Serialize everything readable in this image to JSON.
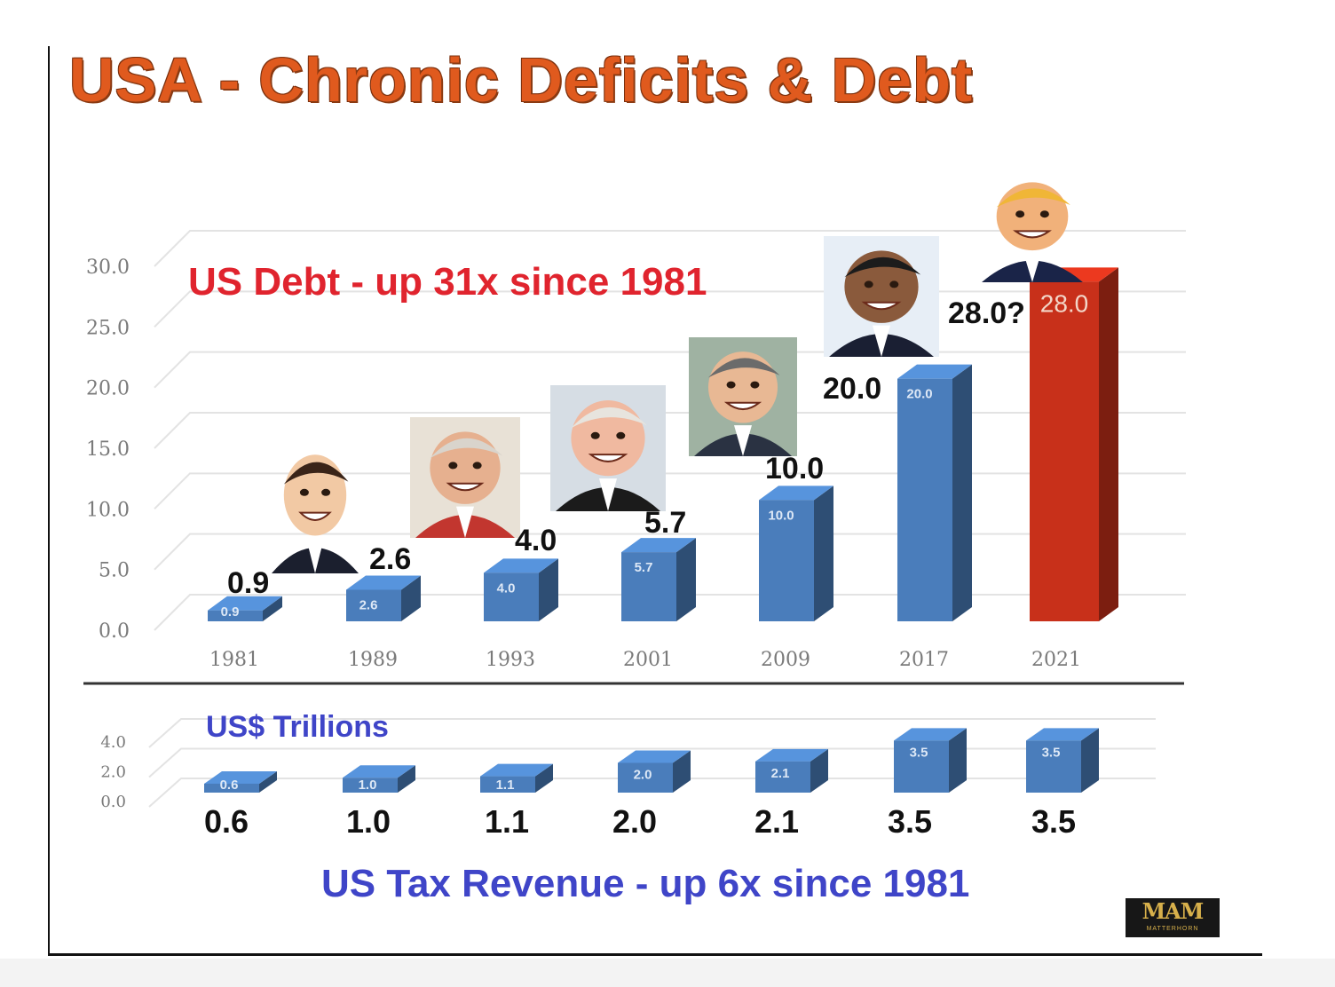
{
  "title": "USA - Chronic Deficits & Debt",
  "logo": {
    "mark": "MAM",
    "text": "MATTERHORN"
  },
  "chart_data": [
    {
      "type": "bar",
      "annotation": "US Debt  -  up 31x since 1981",
      "units_note": "US$ Trillions",
      "categories": [
        "1981",
        "1989",
        "1993",
        "2001",
        "2009",
        "2017",
        "2021"
      ],
      "values": [
        0.9,
        2.6,
        4.0,
        5.7,
        10.0,
        20.0,
        28.0
      ],
      "value_labels": [
        "0.9",
        "2.6",
        "4.0",
        "5.7",
        "10.0",
        "20.0",
        "28.0?"
      ],
      "inner_labels": [
        "0.9",
        "2.6",
        "4.0",
        "5.7",
        "10.0",
        "20.0",
        "28.0"
      ],
      "yticks": [
        "0.0",
        "5.0",
        "10.0",
        "15.0",
        "20.0",
        "25.0",
        "30.0"
      ],
      "ylim": [
        0,
        30
      ],
      "colors": [
        "#4a7dbb",
        "#4a7dbb",
        "#4a7dbb",
        "#4a7dbb",
        "#4a7dbb",
        "#4a7dbb",
        "#c8301a"
      ],
      "portraits": [
        "1981",
        "1989",
        "1993",
        "2001",
        "2017",
        "2021"
      ]
    },
    {
      "type": "bar",
      "annotation": "US Tax Revenue  - up 6x since 1981",
      "categories": [
        "1981",
        "1989",
        "1993",
        "2001",
        "2009",
        "2017",
        "2021"
      ],
      "values": [
        0.6,
        1.0,
        1.1,
        2.0,
        2.1,
        3.5,
        3.5
      ],
      "value_labels": [
        "0.6",
        "1.0",
        "1.1",
        "2.0",
        "2.1",
        "3.5",
        "3.5"
      ],
      "inner_labels": [
        "0.6",
        "1.0",
        "1.1",
        "2.0",
        "2.1",
        "3.5",
        "3.5"
      ],
      "yticks": [
        "0.0",
        "2.0",
        "4.0"
      ],
      "ylim": [
        0,
        4
      ]
    }
  ]
}
